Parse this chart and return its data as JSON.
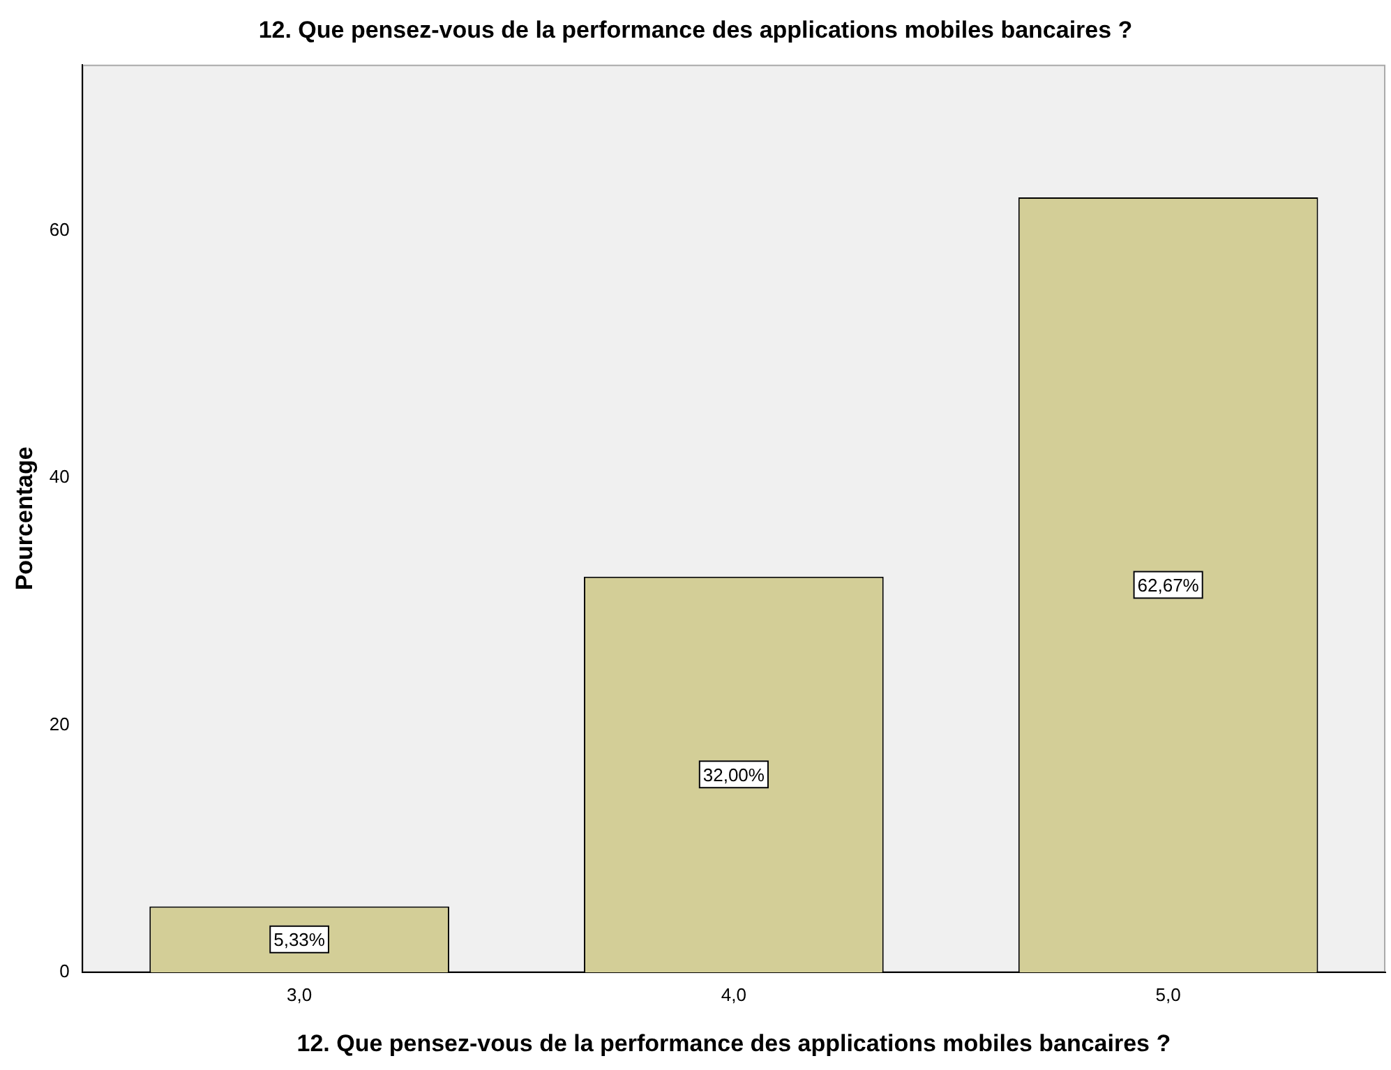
{
  "chart_data": {
    "type": "bar",
    "title": "12. Que pensez-vous de la performance des applications mobiles bancaires ?",
    "xlabel": "12. Que pensez-vous de la performance des applications mobiles bancaires ?",
    "ylabel": "Pourcentage",
    "categories": [
      "3,0",
      "4,0",
      "5,0"
    ],
    "values": [
      5.33,
      32.0,
      62.67
    ],
    "value_labels": [
      "5,33%",
      "32,00%",
      "62,67%"
    ],
    "color": "#d3ce97",
    "ylim": [
      0,
      73.4
    ],
    "yticks": [
      0,
      20,
      40,
      60
    ],
    "grid": false,
    "legend": false
  }
}
